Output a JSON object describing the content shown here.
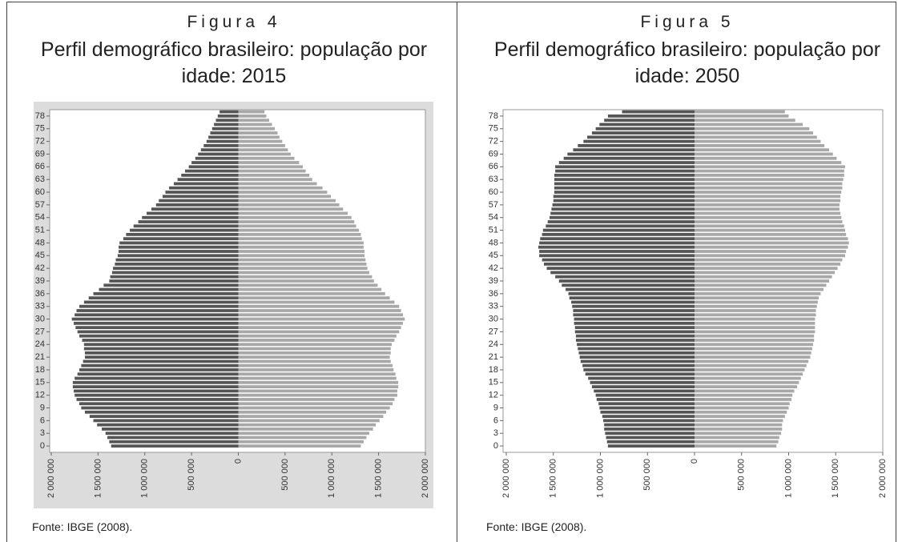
{
  "chart_data": [
    {
      "type": "pyramid",
      "label": "Figura 4",
      "title": "Perfil demográfico brasileiro: população por idade: 2015",
      "source": "Fonte: IBGE (2008).",
      "background": "#dcdcdc",
      "y": [
        0,
        1,
        2,
        3,
        4,
        5,
        6,
        7,
        8,
        9,
        10,
        11,
        12,
        13,
        14,
        15,
        16,
        17,
        18,
        19,
        20,
        21,
        22,
        23,
        24,
        25,
        26,
        27,
        28,
        29,
        30,
        31,
        32,
        33,
        34,
        35,
        36,
        37,
        38,
        39,
        40,
        41,
        42,
        43,
        44,
        45,
        46,
        47,
        48,
        49,
        50,
        51,
        52,
        53,
        54,
        55,
        56,
        57,
        58,
        59,
        60,
        61,
        62,
        63,
        64,
        65,
        66,
        67,
        68,
        69,
        70,
        71,
        72,
        73,
        74,
        75,
        76,
        77,
        78,
        79
      ],
      "ylim": [
        -1.5,
        79.5
      ],
      "yticks": [
        0,
        3,
        6,
        9,
        12,
        15,
        18,
        21,
        24,
        27,
        30,
        33,
        36,
        39,
        42,
        45,
        48,
        51,
        54,
        57,
        60,
        63,
        66,
        69,
        72,
        75,
        78
      ],
      "xlim": [
        -2000000,
        2000000
      ],
      "xticks": [
        {
          "value": -2000000,
          "label": "2 000 000"
        },
        {
          "value": -1500000,
          "label": "1 500 000"
        },
        {
          "value": -1000000,
          "label": "1 000 000"
        },
        {
          "value": -500000,
          "label": "500 000"
        },
        0,
        {
          "value": 500000,
          "label": "500 000"
        },
        {
          "value": 1000000,
          "label": "1 000 000"
        },
        {
          "value": 1500000,
          "label": "1 500 000"
        },
        {
          "value": 2000000,
          "label": "2 000 000"
        }
      ],
      "series": [
        {
          "color": "#555555",
          "values": [
            -1360000,
            -1380000,
            -1400000,
            -1420000,
            -1460000,
            -1510000,
            -1550000,
            -1590000,
            -1640000,
            -1680000,
            -1700000,
            -1730000,
            -1750000,
            -1760000,
            -1770000,
            -1770000,
            -1750000,
            -1720000,
            -1700000,
            -1680000,
            -1660000,
            -1640000,
            -1640000,
            -1650000,
            -1650000,
            -1670000,
            -1700000,
            -1720000,
            -1740000,
            -1760000,
            -1780000,
            -1750000,
            -1730000,
            -1700000,
            -1650000,
            -1600000,
            -1550000,
            -1490000,
            -1440000,
            -1380000,
            -1370000,
            -1350000,
            -1340000,
            -1320000,
            -1310000,
            -1290000,
            -1280000,
            -1280000,
            -1270000,
            -1230000,
            -1200000,
            -1160000,
            -1120000,
            -1070000,
            -1030000,
            -980000,
            -930000,
            -880000,
            -850000,
            -810000,
            -780000,
            -740000,
            -690000,
            -650000,
            -610000,
            -570000,
            -530000,
            -500000,
            -460000,
            -430000,
            -400000,
            -370000,
            -340000,
            -320000,
            -300000,
            -280000,
            -260000,
            -240000,
            -220000,
            -200000
          ]
        },
        {
          "color": "#a8a8a8",
          "values": [
            1310000,
            1340000,
            1370000,
            1400000,
            1440000,
            1470000,
            1510000,
            1550000,
            1580000,
            1620000,
            1650000,
            1670000,
            1700000,
            1700000,
            1710000,
            1710000,
            1690000,
            1680000,
            1660000,
            1650000,
            1630000,
            1620000,
            1630000,
            1630000,
            1640000,
            1670000,
            1690000,
            1720000,
            1740000,
            1760000,
            1780000,
            1760000,
            1740000,
            1720000,
            1670000,
            1620000,
            1570000,
            1530000,
            1490000,
            1450000,
            1430000,
            1400000,
            1380000,
            1370000,
            1360000,
            1350000,
            1350000,
            1340000,
            1340000,
            1320000,
            1310000,
            1290000,
            1260000,
            1240000,
            1210000,
            1170000,
            1120000,
            1080000,
            1040000,
            990000,
            950000,
            900000,
            840000,
            790000,
            760000,
            720000,
            690000,
            650000,
            600000,
            560000,
            530000,
            500000,
            470000,
            440000,
            420000,
            390000,
            360000,
            330000,
            300000,
            280000
          ]
        }
      ]
    },
    {
      "type": "pyramid",
      "label": "Figura 5",
      "title": "Perfil demográfico brasileiro: população por idade: 2050",
      "source": "Fonte: IBGE (2008).",
      "background": "#ffffff",
      "y": [
        0,
        1,
        2,
        3,
        4,
        5,
        6,
        7,
        8,
        9,
        10,
        11,
        12,
        13,
        14,
        15,
        16,
        17,
        18,
        19,
        20,
        21,
        22,
        23,
        24,
        25,
        26,
        27,
        28,
        29,
        30,
        31,
        32,
        33,
        34,
        35,
        36,
        37,
        38,
        39,
        40,
        41,
        42,
        43,
        44,
        45,
        46,
        47,
        48,
        49,
        50,
        51,
        52,
        53,
        54,
        55,
        56,
        57,
        58,
        59,
        60,
        61,
        62,
        63,
        64,
        65,
        66,
        67,
        68,
        69,
        70,
        71,
        72,
        73,
        74,
        75,
        76,
        77,
        78,
        79
      ],
      "ylim": [
        -1.5,
        79.5
      ],
      "yticks": [
        0,
        3,
        6,
        9,
        12,
        15,
        18,
        21,
        24,
        27,
        30,
        33,
        36,
        39,
        42,
        45,
        48,
        51,
        54,
        57,
        60,
        63,
        66,
        69,
        72,
        75,
        78
      ],
      "xlim": [
        -2000000,
        2000000
      ],
      "xticks": [
        {
          "value": -2000000,
          "label": "2 000 000"
        },
        {
          "value": -1500000,
          "label": "1 500 000"
        },
        {
          "value": -1000000,
          "label": "1 000 000"
        },
        {
          "value": -500000,
          "label": "500 000"
        },
        0,
        {
          "value": 500000,
          "label": "500 000"
        },
        {
          "value": 1000000,
          "label": "1 000 000"
        },
        {
          "value": 1500000,
          "label": "1 500 000"
        },
        {
          "value": 2000000,
          "label": "2 000 000"
        }
      ],
      "series": [
        {
          "color": "#555555",
          "values": [
            -920000,
            -930000,
            -940000,
            -950000,
            -960000,
            -960000,
            -970000,
            -980000,
            -1000000,
            -1010000,
            -1020000,
            -1040000,
            -1050000,
            -1070000,
            -1090000,
            -1110000,
            -1130000,
            -1160000,
            -1180000,
            -1190000,
            -1210000,
            -1220000,
            -1230000,
            -1240000,
            -1250000,
            -1260000,
            -1260000,
            -1270000,
            -1270000,
            -1280000,
            -1280000,
            -1290000,
            -1290000,
            -1300000,
            -1310000,
            -1330000,
            -1340000,
            -1370000,
            -1410000,
            -1440000,
            -1480000,
            -1530000,
            -1570000,
            -1600000,
            -1620000,
            -1650000,
            -1650000,
            -1660000,
            -1650000,
            -1640000,
            -1620000,
            -1610000,
            -1580000,
            -1560000,
            -1540000,
            -1530000,
            -1520000,
            -1510000,
            -1500000,
            -1500000,
            -1490000,
            -1490000,
            -1490000,
            -1490000,
            -1490000,
            -1480000,
            -1480000,
            -1440000,
            -1390000,
            -1350000,
            -1290000,
            -1240000,
            -1180000,
            -1140000,
            -1090000,
            -1050000,
            -1010000,
            -960000,
            -920000,
            -770000
          ]
        },
        {
          "color": "#a8a8a8",
          "values": [
            870000,
            890000,
            900000,
            920000,
            930000,
            930000,
            940000,
            960000,
            980000,
            1000000,
            1010000,
            1030000,
            1040000,
            1060000,
            1090000,
            1110000,
            1130000,
            1150000,
            1170000,
            1190000,
            1210000,
            1230000,
            1240000,
            1250000,
            1260000,
            1270000,
            1270000,
            1280000,
            1280000,
            1280000,
            1280000,
            1290000,
            1290000,
            1300000,
            1310000,
            1320000,
            1340000,
            1370000,
            1400000,
            1430000,
            1460000,
            1490000,
            1520000,
            1550000,
            1570000,
            1600000,
            1610000,
            1630000,
            1640000,
            1630000,
            1610000,
            1600000,
            1590000,
            1570000,
            1560000,
            1550000,
            1540000,
            1540000,
            1550000,
            1550000,
            1560000,
            1570000,
            1570000,
            1580000,
            1590000,
            1590000,
            1600000,
            1560000,
            1510000,
            1470000,
            1430000,
            1380000,
            1340000,
            1300000,
            1260000,
            1220000,
            1150000,
            1070000,
            1000000,
            960000
          ]
        }
      ]
    }
  ]
}
